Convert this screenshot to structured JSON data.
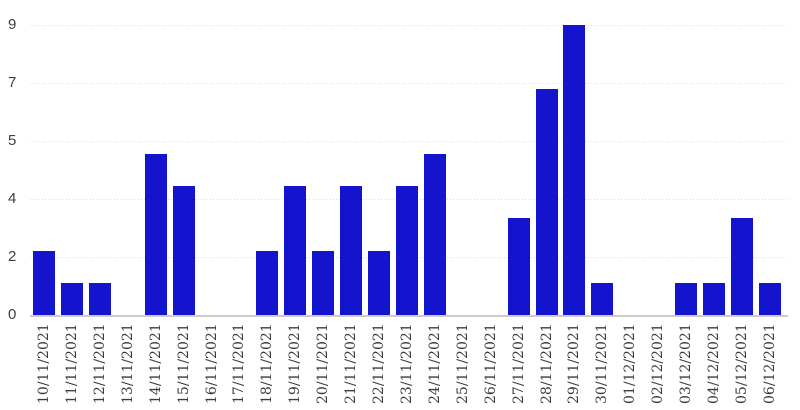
{
  "chart_data": {
    "type": "bar",
    "title": "",
    "xlabel": "",
    "ylabel": "",
    "legend": "none",
    "grid": "horizontal-dotted",
    "ylim": [
      0,
      9
    ],
    "y_ticks": [
      {
        "value": 0,
        "label": "0"
      },
      {
        "value": 1.8,
        "label": "2"
      },
      {
        "value": 3.6,
        "label": "4"
      },
      {
        "value": 5.4,
        "label": "5"
      },
      {
        "value": 7.2,
        "label": "7"
      },
      {
        "value": 9,
        "label": "9"
      }
    ],
    "categories": [
      "10/11/2021",
      "11/11/2021",
      "12/11/2021",
      "13/11/2021",
      "14/11/2021",
      "15/11/2021",
      "16/11/2021",
      "17/11/2021",
      "18/11/2021",
      "19/11/2021",
      "20/11/2021",
      "21/11/2021",
      "22/11/2021",
      "23/11/2021",
      "24/11/2021",
      "25/11/2021",
      "26/11/2021",
      "27/11/2021",
      "28/11/2021",
      "29/11/2021",
      "30/11/2021",
      "01/12/2021",
      "02/12/2021",
      "03/12/2021",
      "04/12/2021",
      "05/12/2021",
      "06/12/2021"
    ],
    "values": [
      2,
      1,
      1,
      0,
      5,
      4,
      0,
      0,
      2,
      4,
      2,
      4,
      2,
      4,
      5,
      0,
      0,
      3,
      7,
      9,
      1,
      0,
      0,
      1,
      1,
      3,
      1
    ],
    "colors": {
      "bar": "#1414CE",
      "gridline": "#DEDEDE",
      "axis_line": "#CCCCCC",
      "y_tick_label": "#404040",
      "x_tick_label": "#3C3C3C",
      "background": "#FFFFFF"
    }
  }
}
